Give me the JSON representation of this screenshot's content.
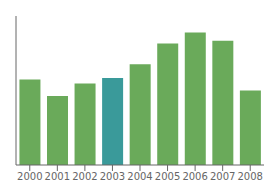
{
  "chart_data": {
    "type": "bar",
    "categories": [
      "2000",
      "2001",
      "2002",
      "2003",
      "2004",
      "2005",
      "2006",
      "2007",
      "2008"
    ],
    "values": [
      62,
      50,
      59,
      63,
      73,
      88,
      96,
      90,
      54
    ],
    "colors": [
      "#6aaa5a",
      "#6aaa5a",
      "#6aaa5a",
      "#3a9a9a",
      "#6aaa5a",
      "#6aaa5a",
      "#6aaa5a",
      "#6aaa5a",
      "#6aaa5a"
    ],
    "ylim": [
      0,
      108
    ],
    "yticks": [],
    "grid": false,
    "tick_labels": "x"
  }
}
